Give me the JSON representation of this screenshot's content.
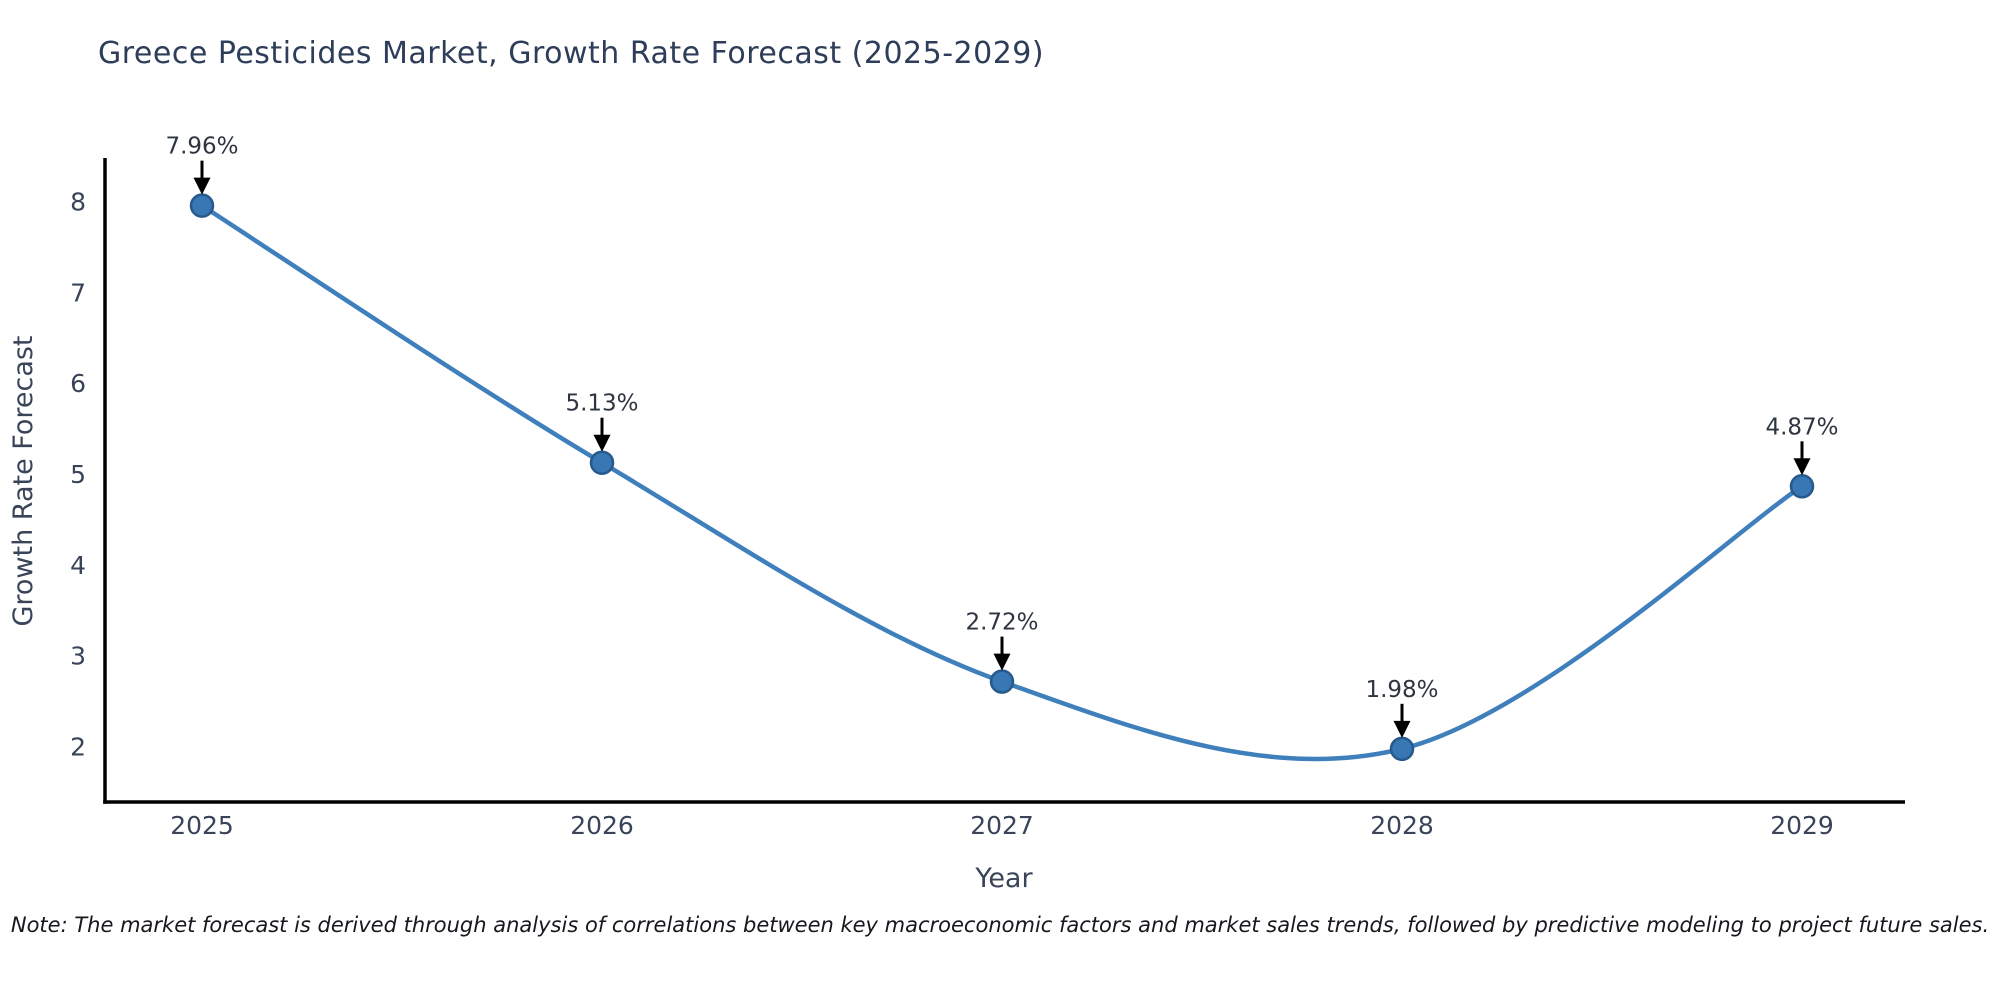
{
  "chart_data": {
    "type": "line",
    "title": "Greece Pesticides Market, Growth Rate Forecast (2025-2029)",
    "xlabel": "Year",
    "ylabel": "Growth Rate Forecast",
    "x": [
      2025,
      2026,
      2027,
      2028,
      2029
    ],
    "values": [
      7.96,
      5.13,
      2.72,
      1.98,
      4.87
    ],
    "point_labels": [
      "7.96%",
      "5.13%",
      "2.72%",
      "1.98%",
      "4.87%"
    ],
    "yticks": [
      2,
      3,
      4,
      5,
      6,
      7,
      8
    ],
    "ylim": [
      1.4,
      8.46
    ],
    "xlim": [
      2024.76,
      2029.26
    ],
    "line_shape": "spline",
    "grid": false,
    "legend": "none",
    "colors": {
      "line": "#3f80bc",
      "marker_fill": "#3876b4",
      "marker_edge": "#27598c",
      "annotation_arrow": "#000000",
      "axis_spine": "#000000",
      "title_text": "#2e3d59",
      "tick_text": "#3a4458"
    }
  },
  "note": "Note: The market forecast is derived through analysis of correlations between key macroeconomic factors and market sales trends, followed by predictive modeling to project future sales."
}
